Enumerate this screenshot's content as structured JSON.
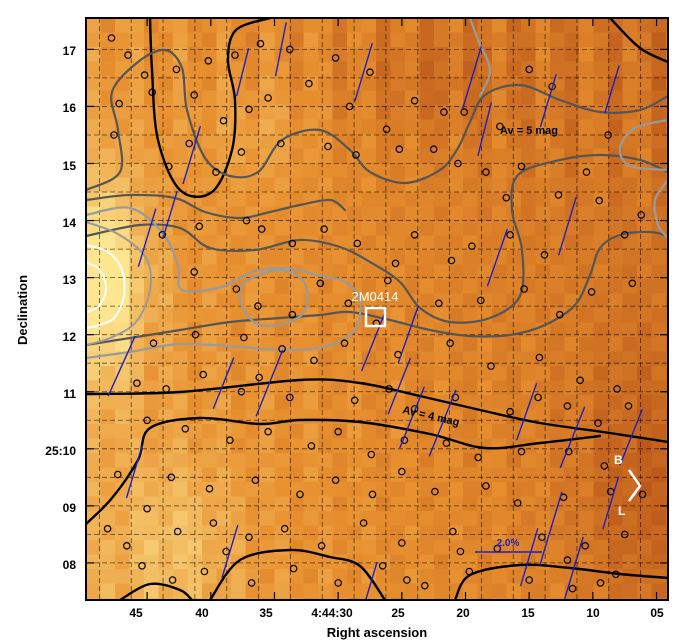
{
  "chart_data": {
    "type": "map",
    "xlabel": "Right ascension",
    "ylabel": "Declination",
    "x_ticks": [
      "45",
      "40",
      "35",
      "4:44:30",
      "25",
      "20",
      "15",
      "10",
      "05"
    ],
    "y_ticks": [
      "17",
      "16",
      "15",
      "14",
      "13",
      "12",
      "11",
      "25:10",
      "09",
      "08"
    ],
    "grid": true,
    "grid_style": "dashed",
    "colormap": "hot (yellow = low, dark red = high)",
    "colors": {
      "low": "#fde690",
      "mid": "#e8902f",
      "high": "#b04a14",
      "contour_dark": "#000000",
      "contour_gray": "#555555",
      "contour_light": "#9a9a9a",
      "contour_white": "#ffffff",
      "vector": "#2020c0"
    },
    "contour_labels": [
      "Av = 5 mag",
      "Av = 4 mag"
    ],
    "target_label": "2M0414",
    "scale_bar_label": "2.0%",
    "compass": {
      "north_label": "B",
      "east_label": "L"
    },
    "stars": [
      [
        47.8,
        17.2
      ],
      [
        46.5,
        16.9
      ],
      [
        45.2,
        16.55
      ],
      [
        47.2,
        16.05
      ],
      [
        44.6,
        16.25
      ],
      [
        47.6,
        15.5
      ],
      [
        42.7,
        16.65
      ],
      [
        41.3,
        16.2
      ],
      [
        40.2,
        16.8
      ],
      [
        38.1,
        16.9
      ],
      [
        36.1,
        17.1
      ],
      [
        33.8,
        17.0
      ],
      [
        30.2,
        16.85
      ],
      [
        27.5,
        16.6
      ],
      [
        37.0,
        15.95
      ],
      [
        35.5,
        16.15
      ],
      [
        32.3,
        16.4
      ],
      [
        29.1,
        16.0
      ],
      [
        24.0,
        16.1
      ],
      [
        21.7,
        15.9
      ],
      [
        39.0,
        15.75
      ],
      [
        34.5,
        15.35
      ],
      [
        37.6,
        15.2
      ],
      [
        43.3,
        14.95
      ],
      [
        41.7,
        15.35
      ],
      [
        39.6,
        14.85
      ],
      [
        30.8,
        15.3
      ],
      [
        28.6,
        15.15
      ],
      [
        26.2,
        15.6
      ],
      [
        25.2,
        15.25
      ],
      [
        22.5,
        15.25
      ],
      [
        20.1,
        15.9
      ],
      [
        17.3,
        15.65
      ],
      [
        20.6,
        15.0
      ],
      [
        18.4,
        14.85
      ],
      [
        16.8,
        14.4
      ],
      [
        15.0,
        16.65
      ],
      [
        13.2,
        16.35
      ],
      [
        15.6,
        14.95
      ],
      [
        12.7,
        14.45
      ],
      [
        10.5,
        14.85
      ],
      [
        9.5,
        14.35
      ],
      [
        8.8,
        15.5
      ],
      [
        6.2,
        14.1
      ],
      [
        7.5,
        13.75
      ],
      [
        6.9,
        12.9
      ],
      [
        10.1,
        12.75
      ],
      [
        13.8,
        13.4
      ],
      [
        16.5,
        13.75
      ],
      [
        19.5,
        13.55
      ],
      [
        21.1,
        13.3
      ],
      [
        24.0,
        13.75
      ],
      [
        22.1,
        12.55
      ],
      [
        18.8,
        12.6
      ],
      [
        15.4,
        12.8
      ],
      [
        12.6,
        12.35
      ],
      [
        43.8,
        13.75
      ],
      [
        40.9,
        13.9
      ],
      [
        37.2,
        14.0
      ],
      [
        36.0,
        13.85
      ],
      [
        33.6,
        13.6
      ],
      [
        31.1,
        13.85
      ],
      [
        28.5,
        13.6
      ],
      [
        25.5,
        13.25
      ],
      [
        41.3,
        13.1
      ],
      [
        38.0,
        12.8
      ],
      [
        36.3,
        12.5
      ],
      [
        33.6,
        12.35
      ],
      [
        31.4,
        12.9
      ],
      [
        29.2,
        12.55
      ],
      [
        26.1,
        12.95
      ],
      [
        27.0,
        12.2
      ],
      [
        44.5,
        11.85
      ],
      [
        41.2,
        12.0
      ],
      [
        37.4,
        11.95
      ],
      [
        34.4,
        11.75
      ],
      [
        31.9,
        11.55
      ],
      [
        29.5,
        11.85
      ],
      [
        25.3,
        11.65
      ],
      [
        21.2,
        11.85
      ],
      [
        18.0,
        11.45
      ],
      [
        14.2,
        11.6
      ],
      [
        11.0,
        11.2
      ],
      [
        8.1,
        11.05
      ],
      [
        45.8,
        11.15
      ],
      [
        43.5,
        11.05
      ],
      [
        40.6,
        11.3
      ],
      [
        37.6,
        11.0
      ],
      [
        36.2,
        11.25
      ],
      [
        33.8,
        10.9
      ],
      [
        28.7,
        10.85
      ],
      [
        26.0,
        11.05
      ],
      [
        24.0,
        10.7
      ],
      [
        20.8,
        10.9
      ],
      [
        16.5,
        10.65
      ],
      [
        14.3,
        10.9
      ],
      [
        12.0,
        10.75
      ],
      [
        9.6,
        10.45
      ],
      [
        7.2,
        10.75
      ],
      [
        45.0,
        10.5
      ],
      [
        42.0,
        10.35
      ],
      [
        38.5,
        10.15
      ],
      [
        35.5,
        10.3
      ],
      [
        32.1,
        10.05
      ],
      [
        30.0,
        10.3
      ],
      [
        27.4,
        9.9
      ],
      [
        24.8,
        10.15
      ],
      [
        21.5,
        10.1
      ],
      [
        19.0,
        9.85
      ],
      [
        15.6,
        9.95
      ],
      [
        11.9,
        9.95
      ],
      [
        9.1,
        9.7
      ],
      [
        47.3,
        9.55
      ],
      [
        43.1,
        9.5
      ],
      [
        40.1,
        9.3
      ],
      [
        36.5,
        9.45
      ],
      [
        33.0,
        9.2
      ],
      [
        30.2,
        9.45
      ],
      [
        27.3,
        9.2
      ],
      [
        25.0,
        9.6
      ],
      [
        22.4,
        9.25
      ],
      [
        18.4,
        9.35
      ],
      [
        15.9,
        9.05
      ],
      [
        12.3,
        9.15
      ],
      [
        8.6,
        9.25
      ],
      [
        6.1,
        9.2
      ],
      [
        48.1,
        8.6
      ],
      [
        45.0,
        8.95
      ],
      [
        42.6,
        8.55
      ],
      [
        39.8,
        8.7
      ],
      [
        37.0,
        8.45
      ],
      [
        34.2,
        8.6
      ],
      [
        31.3,
        8.3
      ],
      [
        28.0,
        8.7
      ],
      [
        25.0,
        8.35
      ],
      [
        21.0,
        8.55
      ],
      [
        17.5,
        8.25
      ],
      [
        14.0,
        8.45
      ],
      [
        10.6,
        8.3
      ],
      [
        7.5,
        8.5
      ],
      [
        45.4,
        7.95
      ],
      [
        43.0,
        7.7
      ],
      [
        40.5,
        7.85
      ],
      [
        36.8,
        7.65
      ],
      [
        33.5,
        7.9
      ],
      [
        30.0,
        7.65
      ],
      [
        26.5,
        7.95
      ],
      [
        23.2,
        7.6
      ],
      [
        19.7,
        7.85
      ],
      [
        15.0,
        7.7
      ],
      [
        11.6,
        7.55
      ],
      [
        8.2,
        7.8
      ],
      [
        46.6,
        8.3
      ],
      [
        38.8,
        8.2
      ],
      [
        24.6,
        7.7
      ],
      [
        20.4,
        8.2
      ],
      [
        12.0,
        8.05
      ],
      [
        9.4,
        7.65
      ]
    ],
    "vectors": [
      [
        37.5,
        16.6,
        4.5,
        -0.25
      ],
      [
        34.5,
        17.0,
        5.0,
        -0.2
      ],
      [
        28.0,
        16.6,
        5.5,
        -0.3
      ],
      [
        19.5,
        16.5,
        6.0,
        -0.3
      ],
      [
        13.5,
        16.1,
        5.0,
        -0.3
      ],
      [
        8.5,
        16.3,
        4.5,
        -0.3
      ],
      [
        41.5,
        15.15,
        5.5,
        -0.3
      ],
      [
        18.5,
        15.6,
        5.0,
        -0.25
      ],
      [
        12.0,
        13.9,
        5.5,
        -0.3
      ],
      [
        17.5,
        13.35,
        5.5,
        -0.35
      ],
      [
        45.0,
        13.7,
        5.5,
        -0.3
      ],
      [
        43.2,
        14.1,
        4.5,
        -0.3
      ],
      [
        27.2,
        11.9,
        6.0,
        -0.4
      ],
      [
        24.5,
        12.0,
        5.5,
        -0.35
      ],
      [
        39.0,
        11.15,
        5.0,
        -0.4
      ],
      [
        35.4,
        11.15,
        6.5,
        -0.4
      ],
      [
        25.2,
        11.1,
        5.5,
        -0.4
      ],
      [
        24.2,
        10.55,
        6.0,
        -0.4
      ],
      [
        21.8,
        10.45,
        6.5,
        -0.4
      ],
      [
        15.2,
        10.65,
        5.5,
        -0.35
      ],
      [
        11.6,
        10.2,
        6.0,
        -0.4
      ],
      [
        7.0,
        10.2,
        5.5,
        -0.4
      ],
      [
        47.0,
        11.45,
        6.0,
        -0.45
      ],
      [
        46.0,
        9.6,
        5.0,
        -0.3
      ],
      [
        38.5,
        8.2,
        5.0,
        -0.3
      ],
      [
        27.5,
        7.6,
        4.5,
        -0.3
      ],
      [
        15.0,
        8.1,
        5.5,
        -0.3
      ],
      [
        8.6,
        9.05,
        5.0,
        -0.3
      ],
      [
        13.3,
        8.6,
        7.0,
        -0.3
      ],
      [
        11.5,
        7.9,
        6.0,
        -0.3
      ]
    ]
  }
}
